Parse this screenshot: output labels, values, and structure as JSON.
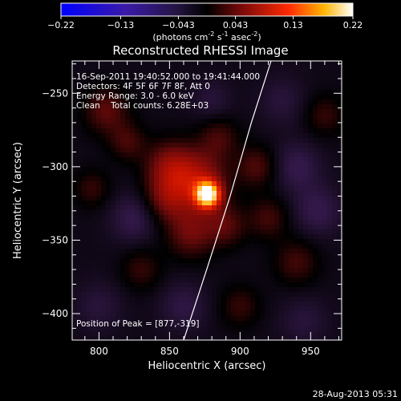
{
  "chart_data": {
    "type": "heatmap",
    "title": "Reconstructed RHESSI Image",
    "xlabel": "Heliocentric X (arcsec)",
    "ylabel": "Heliocentric Y (arcsec)",
    "xlim": [
      781,
      972
    ],
    "ylim": [
      -418,
      -228
    ],
    "x_ticks": [
      800,
      850,
      900,
      950
    ],
    "y_ticks": [
      -250,
      -300,
      -350,
      -400
    ],
    "colorbar": {
      "range": [
        -0.22,
        0.22
      ],
      "ticks": [
        "-0.22",
        "-0.13",
        "-0.043",
        "0.043",
        "0.13",
        "0.22"
      ],
      "ticks_value": [
        -0.22,
        -0.13,
        -0.043,
        0.043,
        0.13,
        0.22
      ],
      "unit_label": "(photons cm",
      "unit_exp1": "-2",
      "unit_mid": " s",
      "unit_exp2": "-1",
      "unit_mid2": " asec",
      "unit_exp3": "-2",
      "unit_end": ")"
    },
    "annotations": [
      "16-Sep-2011 19:40:52.000 to 19:41:44.000",
      "Detectors: 4F 5F 6F 7F 8F, Att 0",
      "Energy Range: 3.0 - 6.0 keV",
      "Clean    Total counts: 6.28E+03"
    ],
    "peak_label": "Position of Peak = [877,-319]",
    "peak": {
      "x": 877,
      "y": -319,
      "value": 0.22
    },
    "limb": [
      [
        922,
        -228
      ],
      [
        908,
        -270
      ],
      [
        893,
        -320
      ],
      [
        877,
        -368
      ],
      [
        860,
        -418
      ]
    ],
    "sources": [
      {
        "x": 877,
        "y": -319,
        "value": 0.22,
        "sigma": 6
      },
      {
        "x": 870,
        "y": -310,
        "value": 0.08,
        "sigma": 14
      },
      {
        "x": 850,
        "y": -300,
        "value": 0.06,
        "sigma": 12
      },
      {
        "x": 848,
        "y": -322,
        "value": 0.05,
        "sigma": 11
      },
      {
        "x": 865,
        "y": -345,
        "value": 0.05,
        "sigma": 12
      },
      {
        "x": 890,
        "y": -340,
        "value": 0.04,
        "sigma": 10
      },
      {
        "x": 912,
        "y": -300,
        "value": 0.04,
        "sigma": 10
      },
      {
        "x": 920,
        "y": -335,
        "value": 0.035,
        "sigma": 10
      },
      {
        "x": 885,
        "y": -280,
        "value": 0.035,
        "sigma": 10
      },
      {
        "x": 805,
        "y": -262,
        "value": 0.045,
        "sigma": 11
      },
      {
        "x": 820,
        "y": -283,
        "value": 0.035,
        "sigma": 9
      },
      {
        "x": 795,
        "y": -315,
        "value": 0.03,
        "sigma": 9
      },
      {
        "x": 940,
        "y": -365,
        "value": 0.035,
        "sigma": 11
      },
      {
        "x": 830,
        "y": -370,
        "value": 0.03,
        "sigma": 10
      },
      {
        "x": 960,
        "y": -265,
        "value": 0.03,
        "sigma": 10
      },
      {
        "x": 900,
        "y": -395,
        "value": 0.03,
        "sigma": 10
      },
      {
        "x": 940,
        "y": -300,
        "value": -0.03,
        "sigma": 12
      },
      {
        "x": 955,
        "y": -330,
        "value": -0.03,
        "sigma": 12
      },
      {
        "x": 825,
        "y": -335,
        "value": -0.03,
        "sigma": 12
      },
      {
        "x": 880,
        "y": -255,
        "value": -0.02,
        "sigma": 10
      },
      {
        "x": 930,
        "y": -255,
        "value": -0.02,
        "sigma": 12
      },
      {
        "x": 860,
        "y": -395,
        "value": -0.025,
        "sigma": 12
      },
      {
        "x": 800,
        "y": -395,
        "value": -0.02,
        "sigma": 12
      },
      {
        "x": 945,
        "y": -405,
        "value": -0.02,
        "sigma": 12
      }
    ]
  },
  "footer_timestamp": "28-Aug-2013 05:31"
}
